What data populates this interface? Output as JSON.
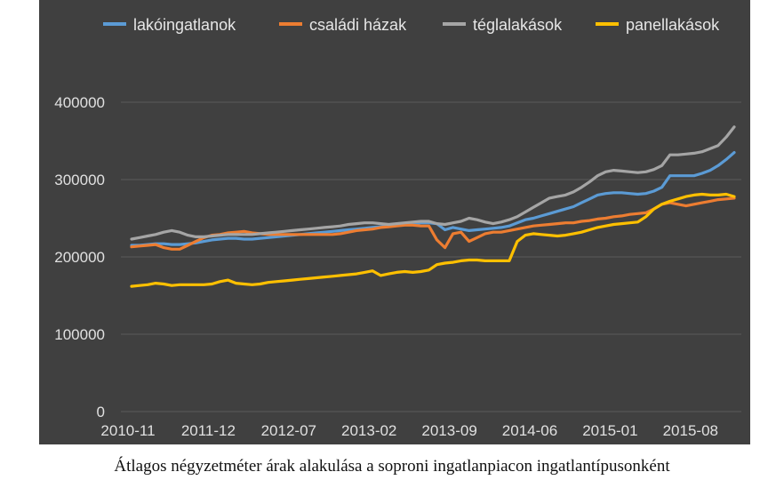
{
  "caption": "Átlagos négyzetméter árak alakulása a soproni ingatlanpiacon ingatlantípusonként",
  "chart_data": {
    "type": "line",
    "title": "",
    "xlabel": "",
    "ylabel": "",
    "background": "#404040",
    "grid": "horizontal",
    "legend_position": "top",
    "ylim": [
      0,
      400000
    ],
    "yticks": [
      0,
      100000,
      200000,
      300000,
      400000
    ],
    "ytick_labels": [
      "0",
      "100000",
      "200000",
      "300000",
      "400000"
    ],
    "x_labels": [
      "2010-11",
      "2011-12",
      "2012-07",
      "2013-02",
      "2013-09",
      "2014-06",
      "2015-01",
      "2015-08"
    ],
    "x_label_indices": [
      0,
      10,
      20,
      30,
      40,
      50,
      60,
      70
    ],
    "n_points": 76,
    "series": [
      {
        "name": "lakóingatlanok",
        "color": "#5b9bd5",
        "values": [
          215000,
          215000,
          216000,
          217000,
          217000,
          216000,
          216000,
          217000,
          218000,
          220000,
          222000,
          223000,
          224000,
          224000,
          223000,
          223000,
          224000,
          225000,
          226000,
          227000,
          228000,
          229000,
          230000,
          231000,
          232000,
          233000,
          234000,
          235000,
          236000,
          237000,
          238000,
          239000,
          240000,
          241000,
          242000,
          243000,
          244000,
          244000,
          243000,
          235000,
          238000,
          236000,
          234000,
          235000,
          236000,
          237000,
          238000,
          240000,
          244000,
          248000,
          250000,
          253000,
          256000,
          259000,
          262000,
          265000,
          270000,
          275000,
          280000,
          282000,
          283000,
          283000,
          282000,
          281000,
          282000,
          285000,
          290000,
          305000,
          305000,
          305000,
          305000,
          308000,
          312000,
          318000,
          326000,
          335000
        ]
      },
      {
        "name": "családi házak",
        "color": "#ed7d31",
        "values": [
          213000,
          214000,
          215000,
          216000,
          212000,
          210000,
          210000,
          215000,
          220000,
          225000,
          228000,
          229000,
          231000,
          232000,
          233000,
          231000,
          230000,
          229000,
          229000,
          229000,
          229000,
          229000,
          229000,
          229000,
          229000,
          229000,
          230000,
          232000,
          234000,
          235000,
          236000,
          238000,
          239000,
          240000,
          241000,
          241000,
          240000,
          240000,
          222000,
          212000,
          230000,
          232000,
          220000,
          225000,
          230000,
          232000,
          232000,
          234000,
          236000,
          238000,
          240000,
          241000,
          242000,
          243000,
          244000,
          244000,
          246000,
          247000,
          249000,
          250000,
          252000,
          253000,
          255000,
          256000,
          257000,
          262000,
          268000,
          270000,
          268000,
          266000,
          268000,
          270000,
          272000,
          274000,
          275000,
          276000
        ]
      },
      {
        "name": "téglalakások",
        "color": "#a5a5a5",
        "values": [
          223000,
          225000,
          227000,
          229000,
          232000,
          234000,
          232000,
          228000,
          226000,
          226000,
          227000,
          228000,
          229000,
          229000,
          229000,
          229000,
          230000,
          231000,
          232000,
          233000,
          234000,
          235000,
          236000,
          237000,
          238000,
          239000,
          240000,
          242000,
          243000,
          244000,
          244000,
          243000,
          242000,
          243000,
          244000,
          245000,
          246000,
          246000,
          243000,
          242000,
          244000,
          246000,
          250000,
          248000,
          245000,
          243000,
          245000,
          248000,
          252000,
          258000,
          264000,
          270000,
          276000,
          278000,
          280000,
          284000,
          290000,
          297000,
          305000,
          310000,
          312000,
          311000,
          310000,
          309000,
          310000,
          313000,
          318000,
          332000,
          332000,
          333000,
          334000,
          336000,
          340000,
          344000,
          355000,
          368000
        ]
      },
      {
        "name": "panellakások",
        "color": "#ffc000",
        "values": [
          162000,
          163000,
          164000,
          166000,
          165000,
          163000,
          164000,
          164000,
          164000,
          164000,
          165000,
          168000,
          170000,
          166000,
          165000,
          164000,
          165000,
          167000,
          168000,
          169000,
          170000,
          171000,
          172000,
          173000,
          174000,
          175000,
          176000,
          177000,
          178000,
          180000,
          182000,
          176000,
          178000,
          180000,
          181000,
          180000,
          181000,
          183000,
          190000,
          192000,
          193000,
          195000,
          196000,
          196000,
          195000,
          195000,
          195000,
          195000,
          220000,
          228000,
          230000,
          229000,
          228000,
          227000,
          228000,
          230000,
          232000,
          235000,
          238000,
          240000,
          242000,
          243000,
          244000,
          245000,
          252000,
          262000,
          268000,
          272000,
          275000,
          278000,
          280000,
          281000,
          280000,
          280000,
          281000,
          278000
        ]
      }
    ]
  }
}
